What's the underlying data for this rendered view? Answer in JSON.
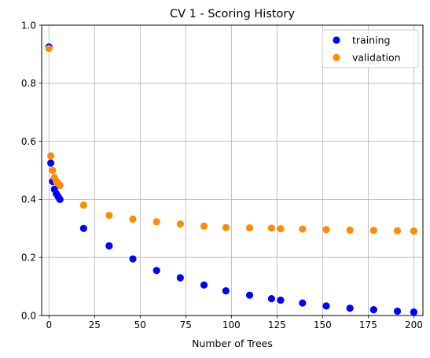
{
  "chart_data": {
    "type": "scatter",
    "title": "CV 1 - Scoring History",
    "xlabel": "Number of Trees",
    "ylabel": "",
    "xlim": [
      -4,
      205
    ],
    "ylim": [
      0,
      1.0
    ],
    "xticks": [
      0,
      25,
      50,
      75,
      100,
      125,
      150,
      175,
      200
    ],
    "yticks": [
      0.0,
      0.2,
      0.4,
      0.6,
      0.8,
      1.0
    ],
    "xtick_labels": [
      "0",
      "25",
      "50",
      "75",
      "100",
      "125",
      "150",
      "175",
      "200"
    ],
    "ytick_labels": [
      "0.0",
      "0.2",
      "0.4",
      "0.6",
      "0.8",
      "1.0"
    ],
    "grid": true,
    "legend_position": "top-right",
    "series": [
      {
        "name": "training",
        "color": "#0000ff",
        "points": [
          [
            0,
            0.925
          ],
          [
            1,
            0.525
          ],
          [
            2,
            0.462
          ],
          [
            3,
            0.435
          ],
          [
            4,
            0.42
          ],
          [
            5,
            0.41
          ],
          [
            6,
            0.4
          ],
          [
            19,
            0.3
          ],
          [
            33,
            0.24
          ],
          [
            46,
            0.195
          ],
          [
            59,
            0.155
          ],
          [
            72,
            0.13
          ],
          [
            85,
            0.105
          ],
          [
            97,
            0.085
          ],
          [
            110,
            0.07
          ],
          [
            122,
            0.058
          ],
          [
            127,
            0.053
          ],
          [
            139,
            0.043
          ],
          [
            152,
            0.033
          ],
          [
            165,
            0.025
          ],
          [
            178,
            0.02
          ],
          [
            191,
            0.015
          ],
          [
            200,
            0.012
          ]
        ]
      },
      {
        "name": "validation",
        "color": "#ff8c00",
        "points": [
          [
            0,
            0.92
          ],
          [
            1,
            0.55
          ],
          [
            2,
            0.5
          ],
          [
            3,
            0.475
          ],
          [
            4,
            0.462
          ],
          [
            5,
            0.455
          ],
          [
            6,
            0.448
          ],
          [
            19,
            0.38
          ],
          [
            33,
            0.345
          ],
          [
            46,
            0.332
          ],
          [
            59,
            0.323
          ],
          [
            72,
            0.315
          ],
          [
            85,
            0.308
          ],
          [
            97,
            0.303
          ],
          [
            110,
            0.302
          ],
          [
            122,
            0.301
          ],
          [
            127,
            0.299
          ],
          [
            139,
            0.298
          ],
          [
            152,
            0.296
          ],
          [
            165,
            0.294
          ],
          [
            178,
            0.293
          ],
          [
            191,
            0.292
          ],
          [
            200,
            0.291
          ]
        ]
      }
    ]
  }
}
